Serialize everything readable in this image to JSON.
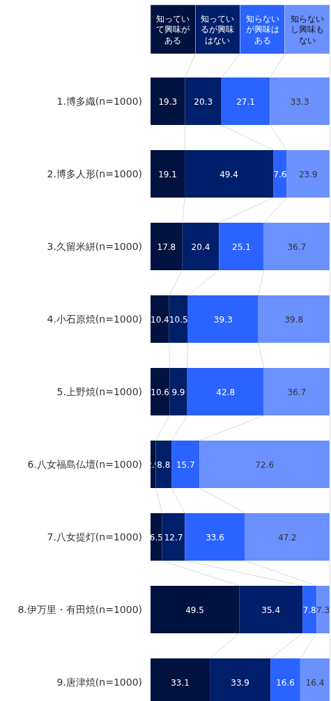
{
  "chart_data": {
    "type": "bar",
    "orientation": "horizontal",
    "stacked": true,
    "data_labels": true,
    "legend": "top",
    "grid": false,
    "categories": [
      "1.博多織(n=1000)",
      "2.博多人形(n=1000)",
      "3.久留米絣(n=1000)",
      "4.小石原焼(n=1000)",
      "5.上野焼(n=1000)",
      "6.八女福島仏壇(n=1000)",
      "7.八女提灯(n=1000)",
      "8.伊万里・有田焼(n=1000)",
      "9.唐津焼(n=1000)"
    ],
    "series": [
      {
        "name": "知っていて興味がある",
        "color": "#00123f",
        "values": [
          19.3,
          19.1,
          17.8,
          10.4,
          10.6,
          2.9,
          6.5,
          49.5,
          33.1
        ]
      },
      {
        "name": "知っているが興味はない",
        "color": "#001f6b",
        "values": [
          20.3,
          49.4,
          20.4,
          10.5,
          9.9,
          8.8,
          12.7,
          35.4,
          33.9
        ]
      },
      {
        "name": "知らないが興味はある",
        "color": "#2a63ff",
        "values": [
          27.1,
          7.6,
          25.1,
          39.3,
          42.8,
          15.7,
          33.6,
          7.8,
          16.6
        ]
      },
      {
        "name": "知らないし興味もない",
        "color": "#6b91ff",
        "values": [
          33.3,
          23.9,
          36.7,
          39.8,
          36.7,
          72.6,
          47.2,
          7.3,
          16.4
        ]
      }
    ]
  }
}
